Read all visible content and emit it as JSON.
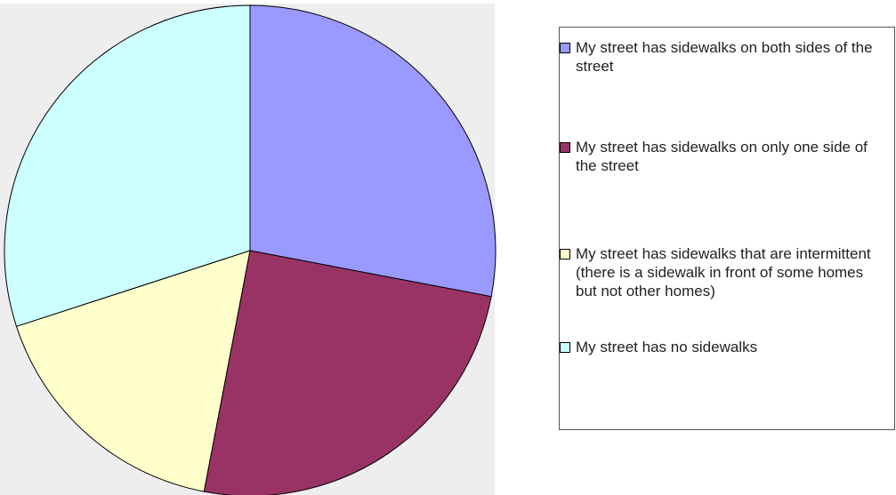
{
  "chart_data": {
    "type": "pie",
    "categories": [
      "My street has sidewalks on both sides of the street",
      "My street has sidewalks on only one side of the street",
      "My street has sidewalks that are intermittent (there is a sidewalk in front of some homes but not other homes)",
      "My street has no sidewalks"
    ],
    "values": [
      28,
      25,
      17,
      30
    ],
    "colors": [
      "#9999ff",
      "#993366",
      "#ffffcc",
      "#ccffff"
    ],
    "legend": "right"
  }
}
